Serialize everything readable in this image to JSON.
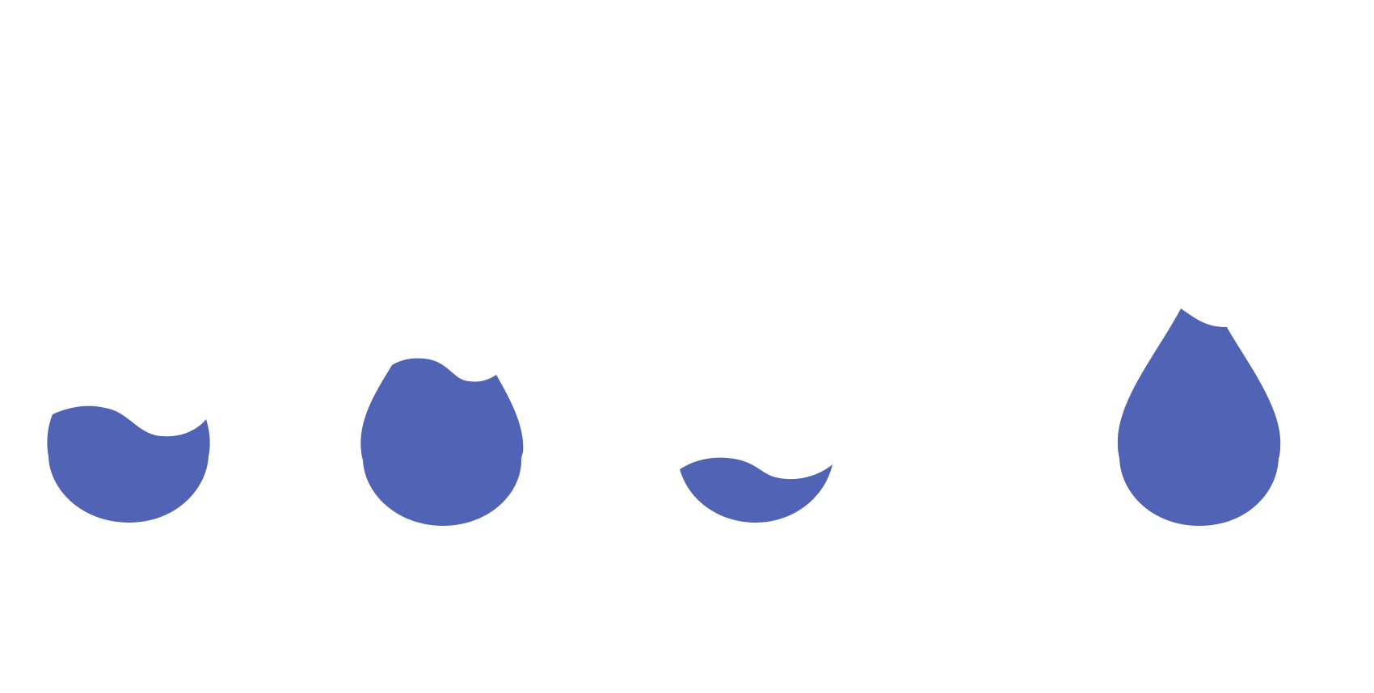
{
  "background_color": "#ffffff",
  "drop_color": "#5163b4",
  "drops": [
    {
      "name": "water-drop-fill-1",
      "icon": "water-drop-icon"
    },
    {
      "name": "water-drop-fill-2",
      "icon": "water-drop-icon"
    },
    {
      "name": "water-drop-fill-3",
      "icon": "water-drop-icon"
    },
    {
      "name": "water-drop-fill-4",
      "icon": "water-drop-icon"
    }
  ]
}
